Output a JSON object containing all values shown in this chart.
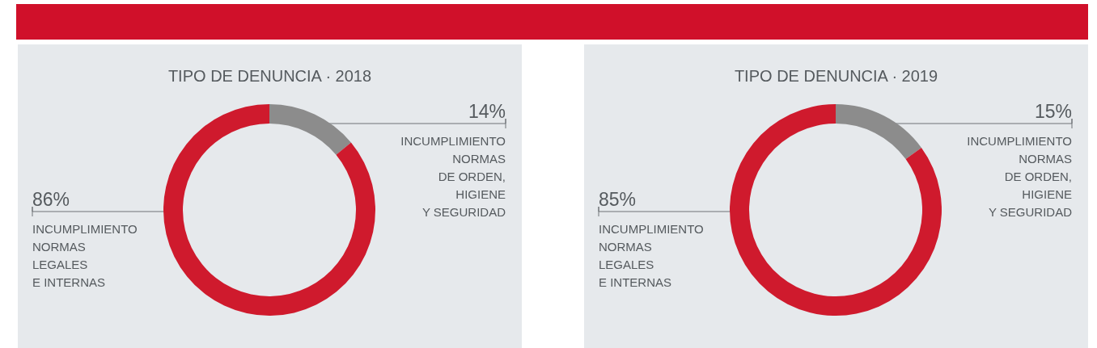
{
  "chart_data": [
    {
      "type": "donut",
      "title": "TIPO DE DENUNCIA · 2018",
      "categories": [
        "INCUMPLIMIENTO\nNORMAS\nDE ORDEN,\nHIGIENE\nY SEGURIDAD",
        "INCUMPLIMIENTO\nNORMAS\nLEGALES\nE INTERNAS"
      ],
      "values": [
        14,
        86
      ],
      "value_labels": [
        "14%",
        "86%"
      ],
      "colors": [
        "#8c8c8c",
        "#cf1a2d"
      ],
      "legend": false
    },
    {
      "type": "donut",
      "title": "TIPO DE DENUNCIA · 2019",
      "categories": [
        "INCUMPLIMIENTO\nNORMAS\nDE ORDEN,\nHIGIENE\nY SEGURIDAD",
        "INCUMPLIMIENTO\nNORMAS\nLEGALES\nE INTERNAS"
      ],
      "values": [
        15,
        85
      ],
      "value_labels": [
        "15%",
        "85%"
      ],
      "colors": [
        "#8c8c8c",
        "#cf1a2d"
      ],
      "legend": false
    }
  ]
}
